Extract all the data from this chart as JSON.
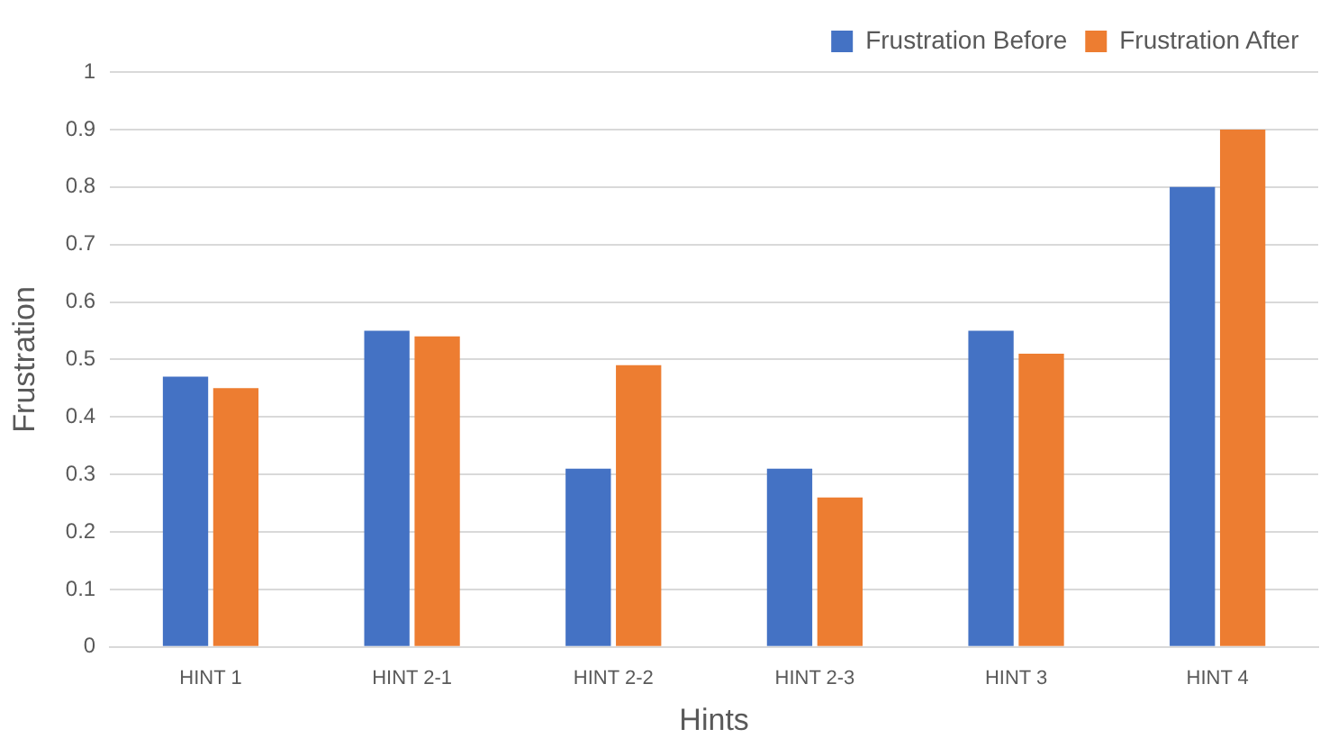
{
  "chart_data": {
    "type": "bar",
    "xlabel": "Hints",
    "ylabel": "Frustration",
    "categories": [
      "HINT 1",
      "HINT 2-1",
      "HINT 2-2",
      "HINT 2-3",
      "HINT 3",
      "HINT 4"
    ],
    "series": [
      {
        "name": "Frustration Before",
        "color": "#4472c4",
        "values": [
          0.47,
          0.55,
          0.31,
          0.31,
          0.55,
          0.8
        ]
      },
      {
        "name": "Frustration After",
        "color": "#ed7d31",
        "values": [
          0.45,
          0.54,
          0.49,
          0.26,
          0.51,
          0.9
        ]
      }
    ],
    "ylim": [
      0,
      1
    ],
    "yticks": [
      0,
      0.1,
      0.2,
      0.3,
      0.4,
      0.5,
      0.6,
      0.7,
      0.8,
      0.9,
      1
    ],
    "grid": "y",
    "legend": "top right"
  }
}
